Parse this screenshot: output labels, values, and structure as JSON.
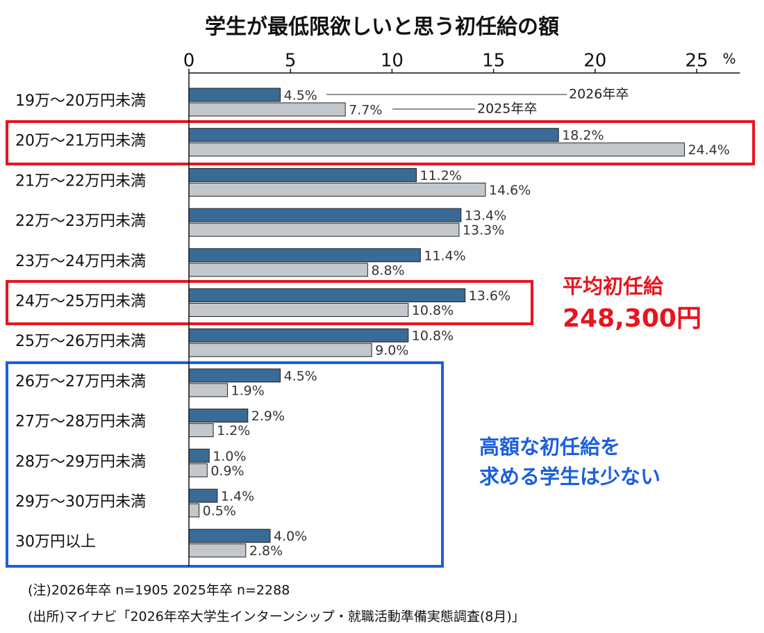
{
  "chart_data": {
    "type": "bar",
    "orientation": "horizontal",
    "title": "学生が最低限欲しいと思う初任給の額",
    "xlabel": "%",
    "categories": [
      "19万〜20万円未満",
      "20万〜21万円未満",
      "21万〜22万円未満",
      "22万〜23万円未満",
      "23万〜24万円未満",
      "24万〜25万円未満",
      "25万〜26万円未満",
      "26万〜27万円未満",
      "27万〜28万円未満",
      "28万〜29万円未満",
      "29万〜30万円未満",
      "30万円以上"
    ],
    "series": [
      {
        "name": "2026年卒",
        "color": "#3a6a96",
        "values": [
          4.5,
          18.2,
          11.2,
          13.4,
          11.4,
          13.6,
          10.8,
          4.5,
          2.9,
          1.0,
          1.4,
          4.0
        ],
        "value_labels": [
          "4.5%",
          "18.2%",
          "11.2%",
          "13.4%",
          "11.4%",
          "13.6%",
          "10.8%",
          "4.5%",
          "2.9%",
          "1.0%",
          "1.4%",
          "4.0%"
        ]
      },
      {
        "name": "2025年卒",
        "color": "#c3c8cd",
        "values": [
          7.7,
          24.4,
          14.6,
          13.3,
          8.8,
          10.8,
          9.0,
          1.9,
          1.2,
          0.9,
          0.5,
          2.8
        ],
        "value_labels": [
          "7.7%",
          "24.4%",
          "14.6%",
          "13.3%",
          "8.8%",
          "10.8%",
          "9.0%",
          "1.9%",
          "1.2%",
          "0.9%",
          "0.5%",
          "2.8%"
        ]
      }
    ],
    "xlim": [
      0,
      27
    ],
    "xticks": [
      0,
      5,
      10,
      15,
      20,
      25
    ],
    "annotations": {
      "average": [
        "平均初任給",
        "248,300円"
      ],
      "high": [
        "高額な初任給を",
        "求める学生は少ない"
      ]
    },
    "notes": [
      "(注)2026年卒 n=1905 2025年卒 n=2288",
      "(出所)マイナビ「2026年卒大学生インターンシップ・就職活動準備実態調査(8月)」"
    ]
  }
}
